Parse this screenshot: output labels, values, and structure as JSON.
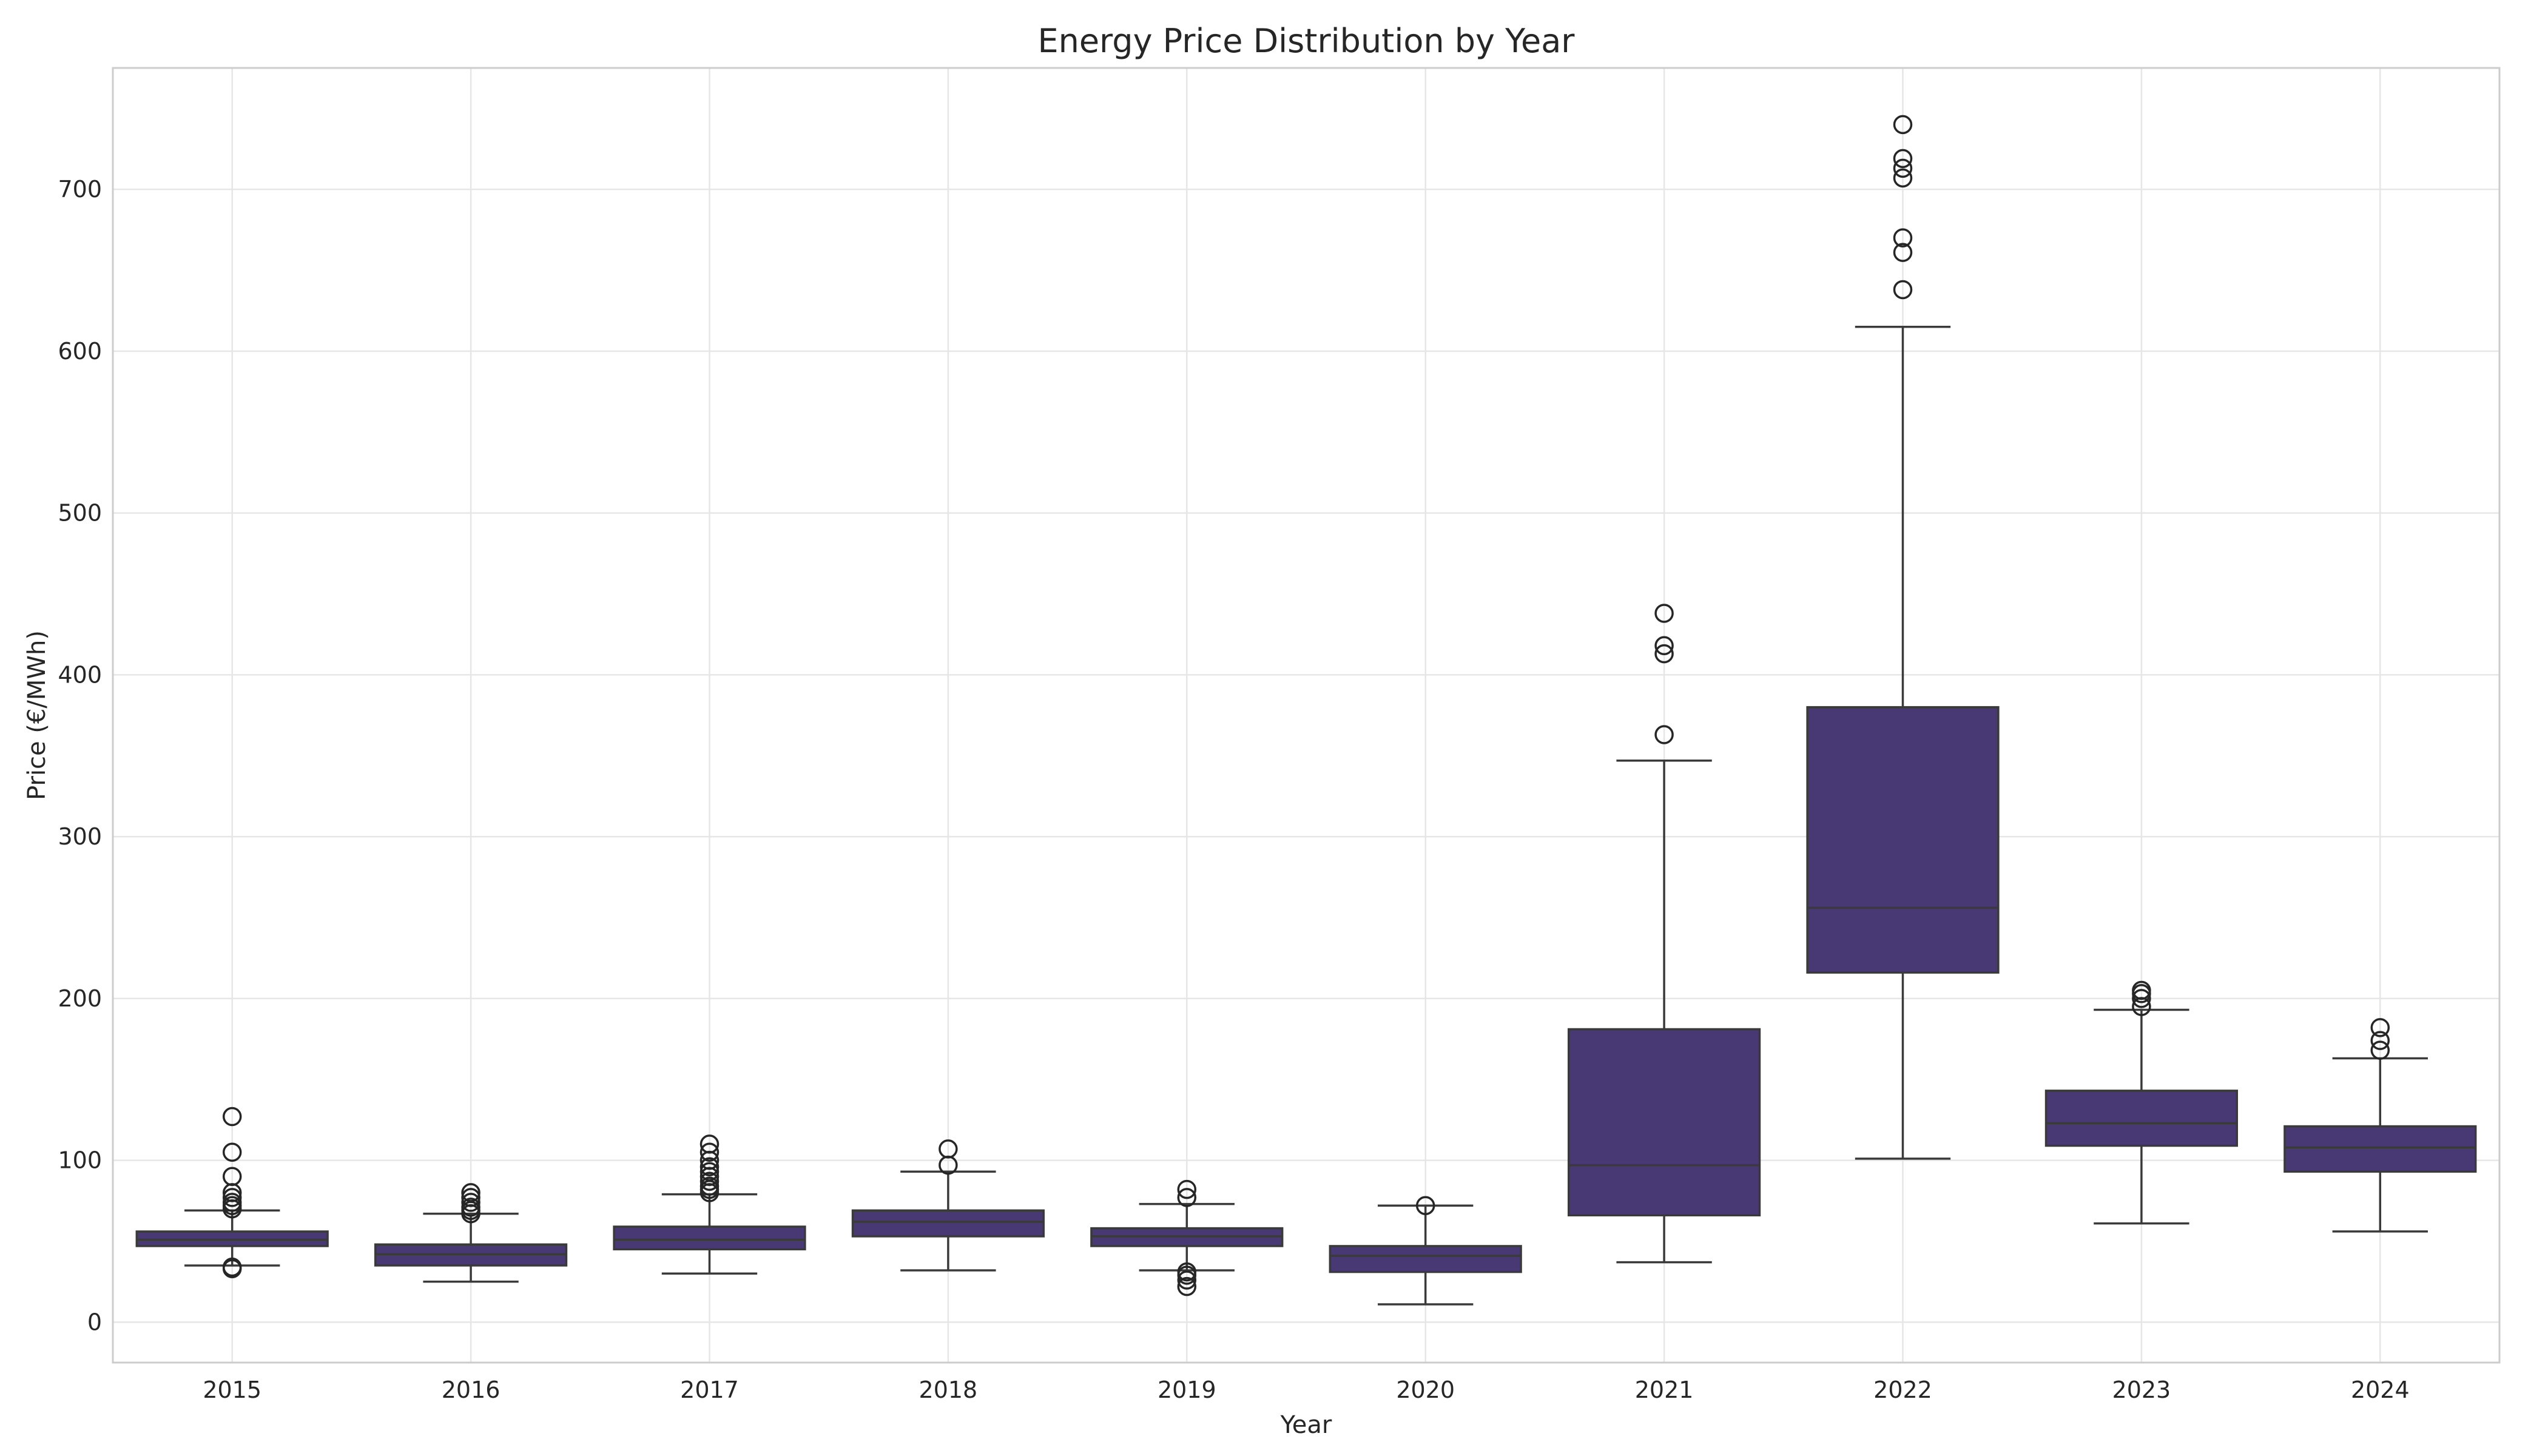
{
  "chart_data": {
    "type": "box",
    "title": "Energy Price Distribution by Year",
    "xlabel": "Year",
    "ylabel": "Price (€/MWh)",
    "categories": [
      "2015",
      "2016",
      "2017",
      "2018",
      "2019",
      "2020",
      "2021",
      "2022",
      "2023",
      "2024"
    ],
    "yticks": [
      0,
      100,
      200,
      300,
      400,
      500,
      600,
      700
    ],
    "ylim": [
      -25,
      775
    ],
    "grid": true,
    "box_color": "#483873",
    "boxes": [
      {
        "year": "2015",
        "whisker_low": 35,
        "q1": 47,
        "median": 51,
        "q3": 56,
        "whisker_high": 69,
        "outliers": [
          33,
          34,
          70,
          72,
          74,
          77,
          80,
          90,
          105,
          127
        ]
      },
      {
        "year": "2016",
        "whisker_low": 25,
        "q1": 35,
        "median": 42,
        "q3": 48,
        "whisker_high": 67,
        "outliers": [
          67,
          69,
          71,
          74,
          77,
          80
        ]
      },
      {
        "year": "2017",
        "whisker_low": 30,
        "q1": 45,
        "median": 51,
        "q3": 59,
        "whisker_high": 79,
        "outliers": [
          80,
          82,
          84,
          87,
          90,
          93,
          96,
          100,
          105,
          110
        ]
      },
      {
        "year": "2018",
        "whisker_low": 32,
        "q1": 53,
        "median": 62,
        "q3": 69,
        "whisker_high": 93,
        "outliers": [
          97,
          107
        ]
      },
      {
        "year": "2019",
        "whisker_low": 32,
        "q1": 47,
        "median": 53,
        "q3": 58,
        "whisker_high": 73,
        "outliers": [
          22,
          26,
          29,
          31,
          77,
          82
        ]
      },
      {
        "year": "2020",
        "whisker_low": 11,
        "q1": 31,
        "median": 41,
        "q3": 47,
        "whisker_high": 72,
        "outliers": [
          72
        ]
      },
      {
        "year": "2021",
        "whisker_low": 37,
        "q1": 66,
        "median": 97,
        "q3": 181,
        "whisker_high": 347,
        "outliers": [
          363,
          413,
          418,
          438
        ]
      },
      {
        "year": "2022",
        "whisker_low": 101,
        "q1": 216,
        "median": 256,
        "q3": 380,
        "whisker_high": 615,
        "outliers": [
          638,
          661,
          670,
          707,
          713,
          719,
          740
        ]
      },
      {
        "year": "2023",
        "whisker_low": 61,
        "q1": 109,
        "median": 123,
        "q3": 143,
        "whisker_high": 193,
        "outliers": [
          195,
          200,
          203,
          205
        ]
      },
      {
        "year": "2024",
        "whisker_low": 56,
        "q1": 93,
        "median": 108,
        "q3": 121,
        "whisker_high": 163,
        "outliers": [
          168,
          174,
          182
        ]
      }
    ]
  }
}
